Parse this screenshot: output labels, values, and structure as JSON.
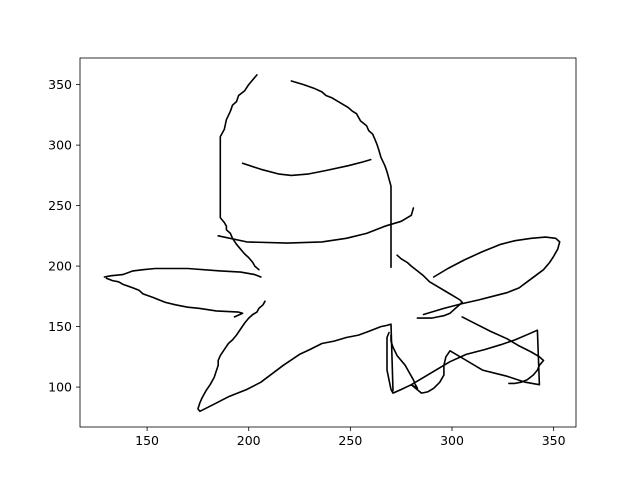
{
  "chart_data": {
    "type": "line",
    "title": "",
    "xlabel": "",
    "ylabel": "",
    "xlim": [
      117,
      361
    ],
    "ylim": [
      67,
      372
    ],
    "xticks": [
      150,
      200,
      250,
      300,
      350
    ],
    "yticks": [
      100,
      150,
      200,
      250,
      300,
      350
    ],
    "grid": false,
    "line_color": "#000000",
    "series": [
      {
        "points": [
          [
            204,
            358
          ],
          [
            200,
            350
          ],
          [
            198,
            345
          ],
          [
            195,
            341
          ],
          [
            194,
            336
          ],
          [
            192,
            333
          ],
          [
            191,
            328
          ],
          [
            189,
            321
          ],
          [
            188,
            313
          ],
          [
            186,
            307
          ],
          [
            186,
            300
          ],
          [
            186,
            290
          ],
          [
            186,
            280
          ],
          [
            186,
            270
          ],
          [
            186,
            260
          ],
          [
            186,
            250
          ],
          [
            186,
            240
          ],
          [
            188,
            236
          ],
          [
            189,
            233
          ],
          [
            189,
            230
          ],
          [
            191,
            227
          ],
          [
            192,
            223
          ],
          [
            194,
            218
          ],
          [
            196,
            214
          ],
          [
            198,
            210
          ],
          [
            200,
            207
          ],
          [
            202,
            203
          ],
          [
            203,
            200
          ],
          [
            205,
            197
          ]
        ]
      },
      {
        "points": [
          [
            221,
            353
          ],
          [
            227,
            350
          ],
          [
            232,
            347
          ],
          [
            236,
            344
          ],
          [
            238,
            341
          ],
          [
            241,
            339
          ],
          [
            244,
            336
          ],
          [
            247,
            333
          ],
          [
            249,
            331
          ],
          [
            251,
            328
          ],
          [
            253,
            326
          ],
          [
            255,
            320
          ],
          [
            258,
            316
          ],
          [
            259,
            312
          ],
          [
            261,
            309
          ],
          [
            262,
            305
          ],
          [
            263,
            301
          ],
          [
            264,
            296
          ],
          [
            265,
            290
          ],
          [
            267,
            283
          ],
          [
            268,
            278
          ],
          [
            269,
            272
          ],
          [
            270,
            266
          ],
          [
            270,
            260
          ],
          [
            270,
            255
          ],
          [
            270,
            250
          ],
          [
            270,
            245
          ],
          [
            270,
            240
          ],
          [
            270,
            235
          ],
          [
            270,
            230
          ],
          [
            270,
            225
          ],
          [
            270,
            220
          ],
          [
            270,
            215
          ],
          [
            270,
            210
          ],
          [
            270,
            205
          ],
          [
            270,
            199
          ]
        ]
      },
      {
        "points": [
          [
            197,
            285
          ],
          [
            206,
            280
          ],
          [
            215,
            276
          ],
          [
            221,
            275
          ],
          [
            229,
            276
          ],
          [
            238,
            279
          ],
          [
            249,
            283
          ],
          [
            256,
            286
          ],
          [
            260,
            288
          ]
        ]
      },
      {
        "points": [
          [
            185,
            225
          ],
          [
            199,
            220
          ],
          [
            219,
            219
          ],
          [
            236,
            220
          ],
          [
            248,
            223
          ],
          [
            258,
            227
          ],
          [
            267,
            233
          ],
          [
            275,
            237
          ],
          [
            280,
            242
          ],
          [
            281,
            248
          ]
        ]
      },
      {
        "points": [
          [
            129,
            191
          ],
          [
            132,
            192
          ],
          [
            138,
            193
          ],
          [
            143,
            196
          ],
          [
            148,
            197
          ],
          [
            154,
            198
          ],
          [
            170,
            198
          ],
          [
            186,
            196
          ],
          [
            196,
            195
          ],
          [
            203,
            193
          ],
          [
            206,
            191
          ]
        ]
      },
      {
        "points": [
          [
            130,
            190
          ],
          [
            133,
            188
          ],
          [
            136,
            187
          ],
          [
            138,
            185
          ],
          [
            143,
            182
          ],
          [
            146,
            180
          ],
          [
            148,
            177
          ],
          [
            153,
            174
          ],
          [
            156,
            172
          ],
          [
            159,
            170
          ],
          [
            164,
            168
          ],
          [
            170,
            166
          ],
          [
            176,
            165
          ],
          [
            184,
            163
          ],
          [
            195,
            162
          ],
          [
            197,
            161
          ],
          [
            193,
            158
          ]
        ]
      },
      {
        "points": [
          [
            208,
            171
          ],
          [
            207,
            168
          ],
          [
            205,
            165
          ],
          [
            204,
            162
          ],
          [
            202,
            160
          ],
          [
            200,
            157
          ],
          [
            198,
            153
          ],
          [
            196,
            148
          ],
          [
            194,
            143
          ],
          [
            192,
            139
          ],
          [
            190,
            136
          ],
          [
            188,
            131
          ],
          [
            186,
            126
          ],
          [
            185,
            122
          ],
          [
            185,
            118
          ],
          [
            184,
            113
          ],
          [
            183,
            108
          ],
          [
            181,
            102
          ],
          [
            179,
            97
          ],
          [
            177,
            91
          ],
          [
            176,
            87
          ],
          [
            175,
            82
          ],
          [
            176,
            80
          ],
          [
            182,
            85
          ],
          [
            190,
            92
          ],
          [
            199,
            98
          ],
          [
            206,
            104
          ],
          [
            217,
            118
          ],
          [
            225,
            127
          ],
          [
            230,
            131
          ],
          [
            236,
            136
          ],
          [
            242,
            138
          ],
          [
            248,
            141
          ],
          [
            254,
            143
          ],
          [
            259,
            146
          ],
          [
            262,
            148
          ],
          [
            265,
            150
          ],
          [
            268,
            151
          ],
          [
            270,
            152
          ],
          [
            271,
            97
          ]
        ]
      },
      {
        "points": [
          [
            269,
            145
          ],
          [
            268,
            141
          ],
          [
            268,
            135
          ],
          [
            268,
            124
          ],
          [
            268,
            114
          ],
          [
            269,
            106
          ],
          [
            270,
            98
          ],
          [
            271,
            95
          ],
          [
            275,
            98
          ],
          [
            280,
            102
          ],
          [
            290,
            112
          ],
          [
            299,
            121
          ],
          [
            307,
            127
          ],
          [
            316,
            131
          ],
          [
            324,
            135
          ],
          [
            331,
            139
          ],
          [
            338,
            144
          ],
          [
            342,
            147
          ],
          [
            343,
            102
          ],
          [
            336,
            104
          ],
          [
            327,
            109
          ],
          [
            315,
            114
          ],
          [
            305,
            124
          ],
          [
            299,
            130
          ],
          [
            297,
            125
          ],
          [
            296,
            118
          ],
          [
            296,
            110
          ],
          [
            294,
            104
          ],
          [
            291,
            99
          ],
          [
            288,
            96
          ],
          [
            285,
            95
          ],
          [
            280,
            102
          ],
          [
            283,
            99
          ],
          [
            282,
            102
          ],
          [
            281,
            106
          ],
          [
            279,
            112
          ],
          [
            277,
            118
          ],
          [
            273,
            126
          ],
          [
            271,
            133
          ],
          [
            270,
            138
          ],
          [
            270,
            143
          ]
        ]
      },
      {
        "points": [
          [
            273,
            209
          ],
          [
            275,
            206
          ],
          [
            278,
            203
          ],
          [
            280,
            200
          ],
          [
            283,
            196
          ],
          [
            286,
            192
          ],
          [
            289,
            187
          ],
          [
            293,
            183
          ],
          [
            297,
            179
          ],
          [
            301,
            175
          ],
          [
            304,
            172
          ],
          [
            305,
            170
          ]
        ]
      },
      {
        "points": [
          [
            305,
            170
          ],
          [
            303,
            167
          ],
          [
            301,
            164
          ],
          [
            299,
            161
          ],
          [
            296,
            159
          ],
          [
            293,
            158
          ],
          [
            290,
            157
          ],
          [
            285,
            157
          ],
          [
            283,
            157
          ]
        ]
      },
      {
        "points": [
          [
            291,
            191
          ],
          [
            298,
            198
          ],
          [
            306,
            205
          ],
          [
            315,
            212
          ],
          [
            324,
            218
          ],
          [
            331,
            221
          ],
          [
            339,
            223
          ],
          [
            346,
            224
          ],
          [
            351,
            223
          ],
          [
            353,
            220
          ],
          [
            352,
            214
          ],
          [
            350,
            208
          ],
          [
            348,
            203
          ],
          [
            345,
            197
          ],
          [
            341,
            192
          ],
          [
            337,
            187
          ],
          [
            333,
            182
          ],
          [
            327,
            178
          ],
          [
            320,
            175
          ],
          [
            313,
            172
          ],
          [
            305,
            169
          ],
          [
            296,
            165
          ],
          [
            286,
            160
          ]
        ]
      },
      {
        "points": [
          [
            305,
            158
          ],
          [
            312,
            152
          ],
          [
            319,
            146
          ],
          [
            327,
            140
          ],
          [
            333,
            134
          ],
          [
            339,
            129
          ],
          [
            343,
            125
          ],
          [
            345,
            122
          ],
          [
            343,
            118
          ],
          [
            342,
            114
          ],
          [
            340,
            110
          ],
          [
            337,
            106
          ],
          [
            334,
            104
          ],
          [
            331,
            103
          ],
          [
            328,
            103
          ]
        ]
      }
    ]
  }
}
